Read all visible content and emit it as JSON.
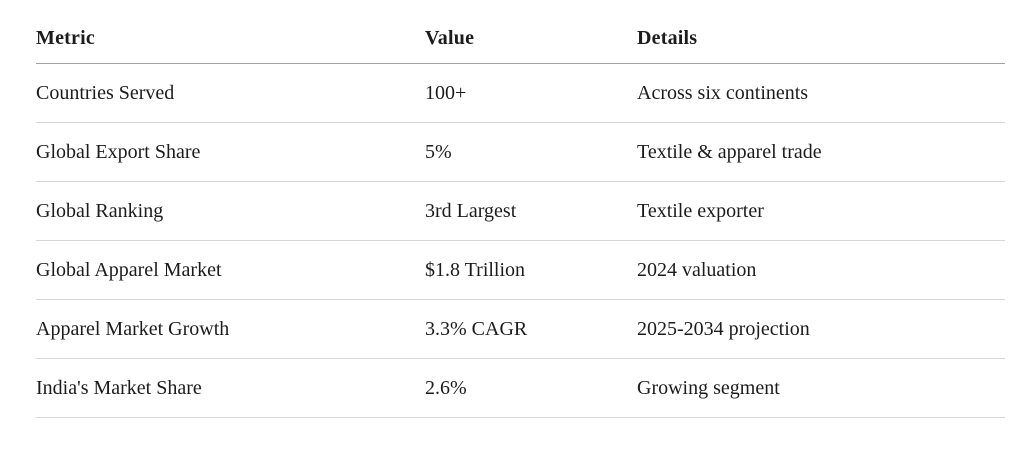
{
  "table": {
    "columns": [
      {
        "label": "Metric"
      },
      {
        "label": "Value"
      },
      {
        "label": "Details"
      }
    ],
    "rows": [
      {
        "metric": "Countries Served",
        "value": "100+",
        "details": "Across six continents"
      },
      {
        "metric": "Global Export Share",
        "value": "5%",
        "details": "Textile & apparel trade"
      },
      {
        "metric": "Global Ranking",
        "value": "3rd Largest",
        "details": "Textile exporter"
      },
      {
        "metric": "Global Apparel Market",
        "value": "$1.8 Trillion",
        "details": "2024 valuation"
      },
      {
        "metric": "Apparel Market Growth",
        "value": "3.3% CAGR",
        "details": "2025-2034 projection"
      },
      {
        "metric": "India's Market Share",
        "value": "2.6%",
        "details": "Growing segment"
      }
    ]
  },
  "chart_data": {
    "type": "table",
    "title": "",
    "columns": [
      "Metric",
      "Value",
      "Details"
    ],
    "rows": [
      [
        "Countries Served",
        "100+",
        "Across six continents"
      ],
      [
        "Global Export Share",
        "5%",
        "Textile & apparel trade"
      ],
      [
        "Global Ranking",
        "3rd Largest",
        "Textile exporter"
      ],
      [
        "Global Apparel Market",
        "$1.8 Trillion",
        "2024 valuation"
      ],
      [
        "Apparel Market Growth",
        "3.3% CAGR",
        "2025-2034 projection"
      ],
      [
        "India's Market Share",
        "2.6%",
        "Growing segment"
      ]
    ]
  },
  "colors": {
    "text": "#1c1c1c",
    "header_rule": "#a2a2a2",
    "row_rule": "#d6d6d6",
    "background": "#ffffff"
  }
}
